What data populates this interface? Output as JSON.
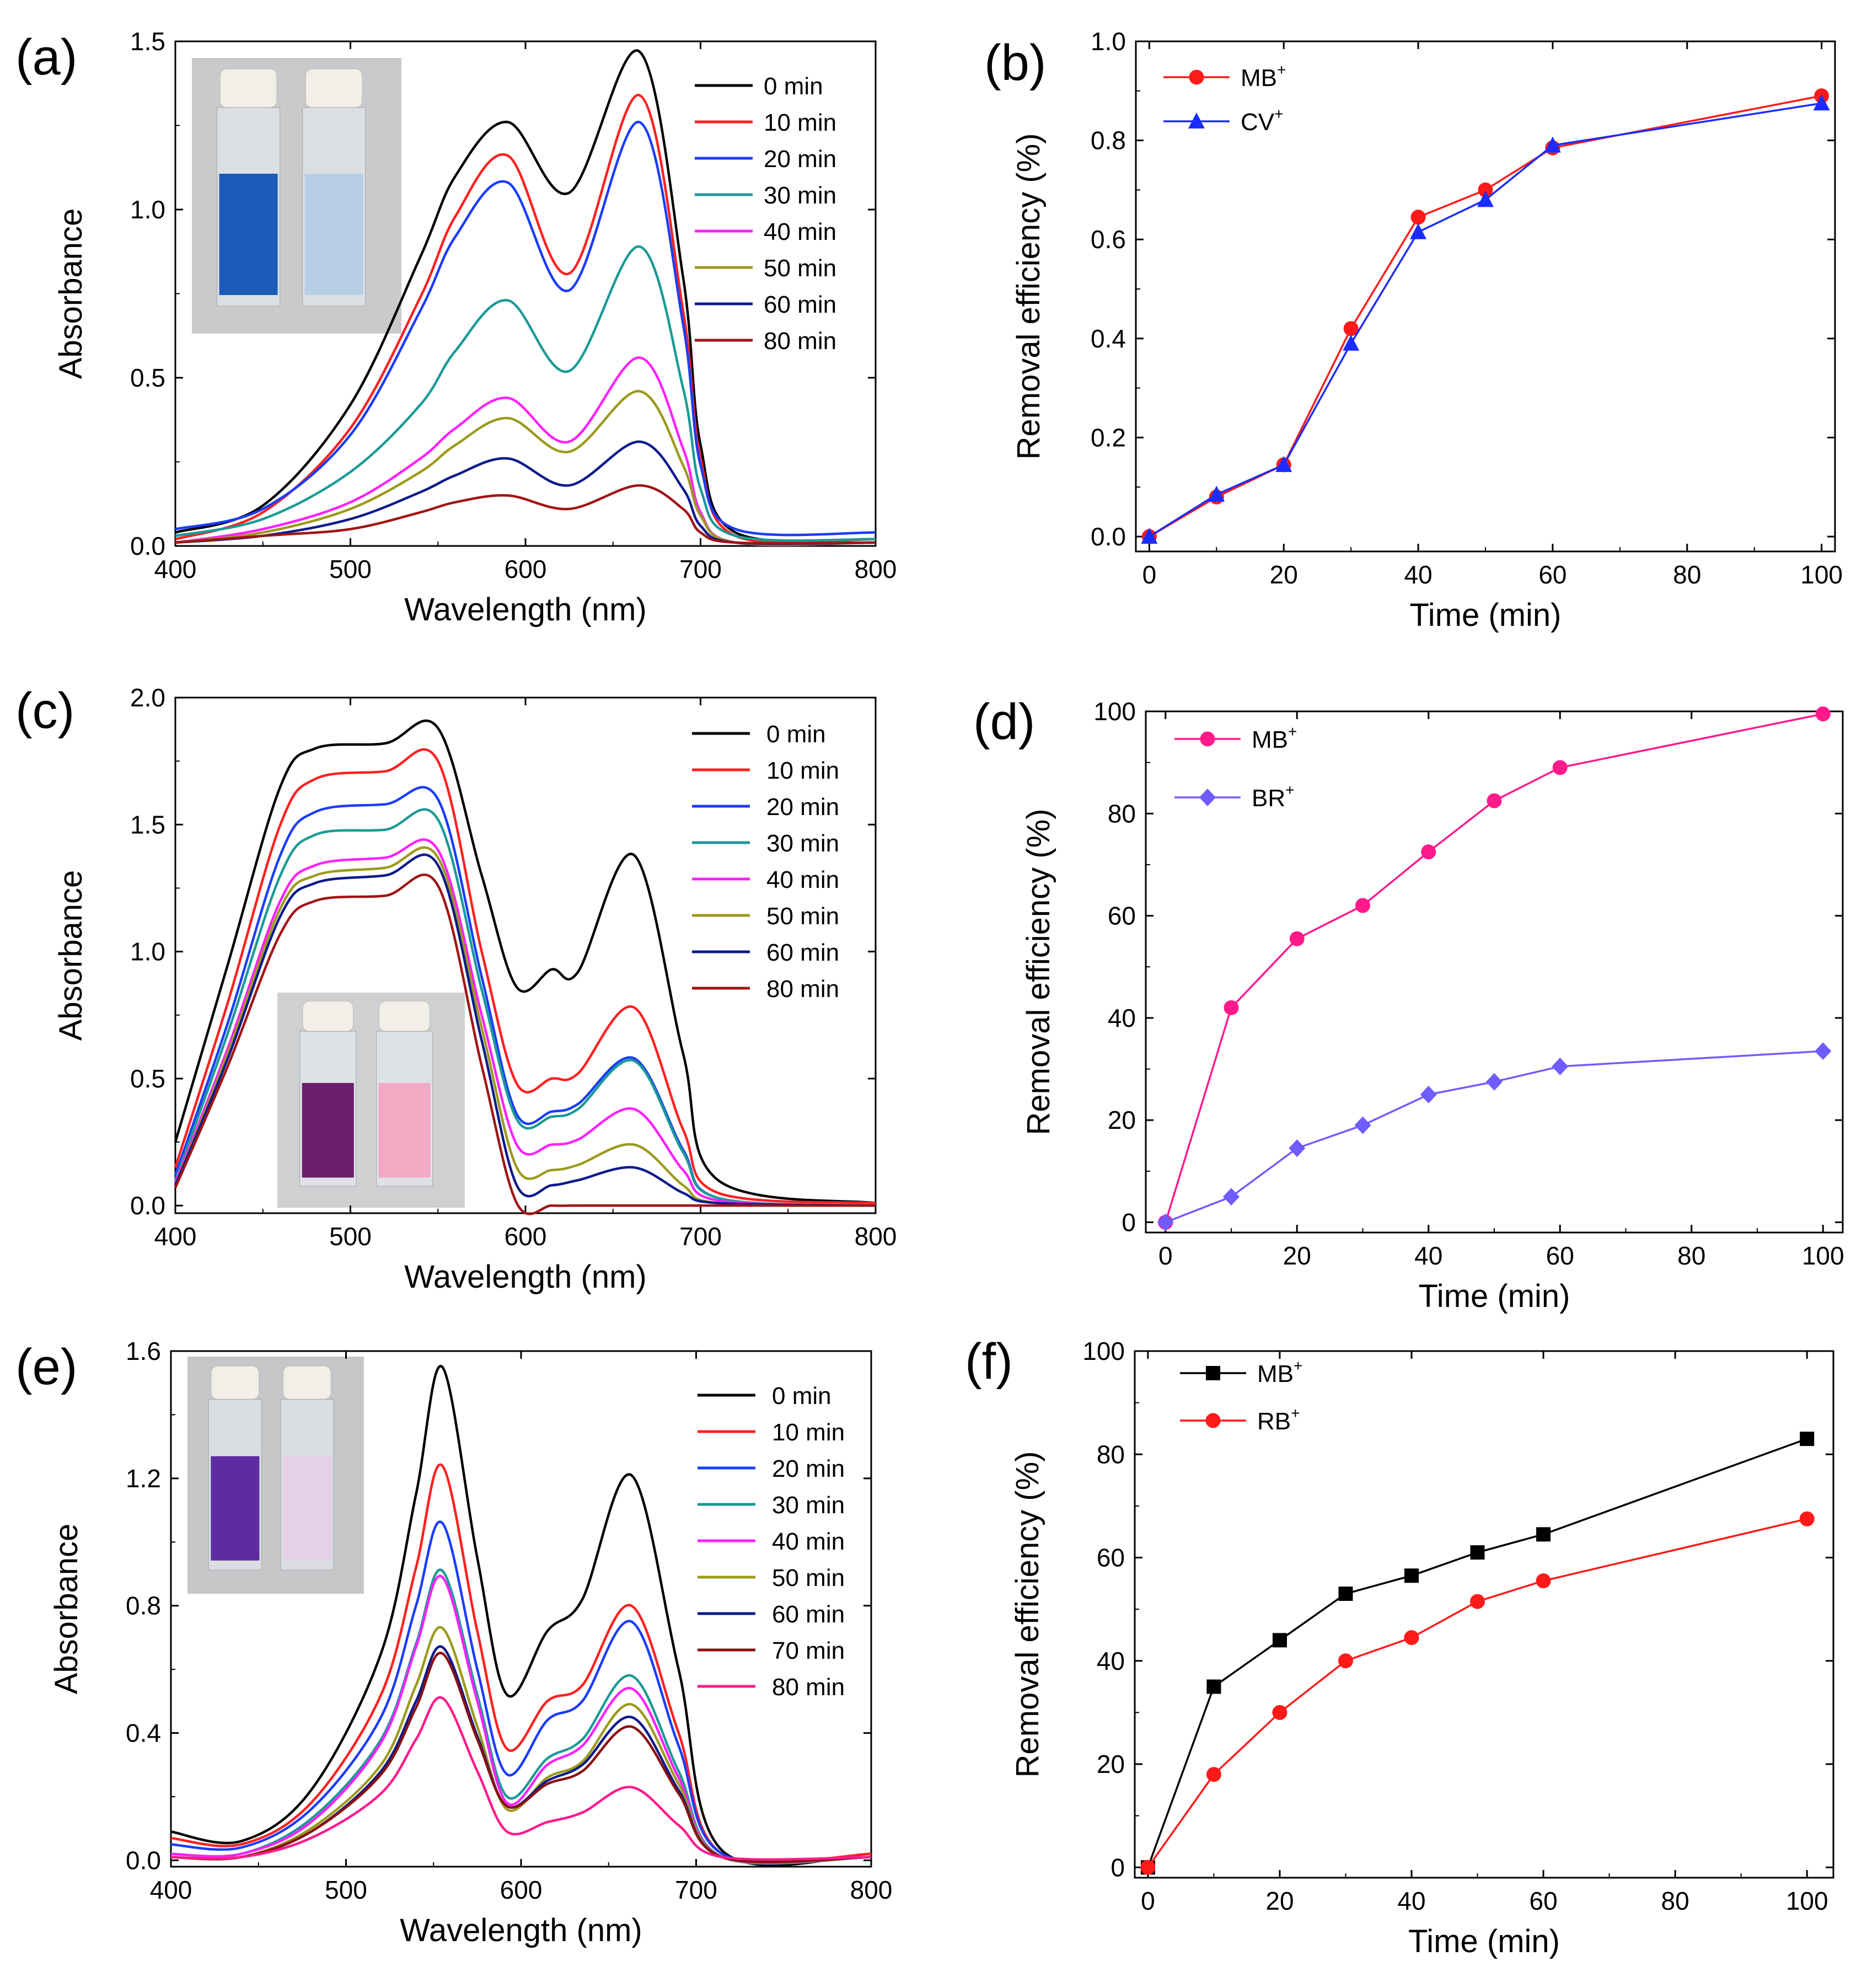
{
  "figure_title": "",
  "chart_data": [
    {
      "panel": "(a)",
      "type": "line",
      "xlabel": "Wavelength (nm)",
      "ylabel": "Absorbance",
      "xlim": [
        400,
        800
      ],
      "ylim": [
        0.0,
        1.5
      ],
      "xticks": [
        400,
        500,
        600,
        700,
        800
      ],
      "yticks": [
        0.0,
        0.5,
        1.0,
        1.5
      ],
      "xtick_labels": [
        "400",
        "500",
        "600",
        "700",
        "800"
      ],
      "ytick_labels": [
        "0.0",
        "0.5",
        "1.0",
        "1.5"
      ],
      "legend_position": "top-right",
      "inset_photo": {
        "position": "top-left",
        "colors": [
          "#1b5bb8",
          "#b7cfe6"
        ],
        "background": "#c9cacb"
      },
      "x": [
        400,
        450,
        500,
        540,
        560,
        590,
        625,
        665,
        690,
        700,
        720,
        800
      ],
      "series": [
        {
          "name": "0 min",
          "color": "#000000",
          "values": [
            0.04,
            0.12,
            0.42,
            0.86,
            1.1,
            1.26,
            1.05,
            1.47,
            0.8,
            0.3,
            0.04,
            0.02
          ]
        },
        {
          "name": "10 min",
          "color": "#ff2020",
          "values": [
            0.02,
            0.1,
            0.35,
            0.74,
            0.98,
            1.16,
            0.81,
            1.34,
            0.7,
            0.26,
            0.03,
            0.02
          ]
        },
        {
          "name": "20 min",
          "color": "#1a3cff",
          "values": [
            0.05,
            0.11,
            0.33,
            0.7,
            0.92,
            1.08,
            0.76,
            1.26,
            0.66,
            0.24,
            0.05,
            0.04
          ]
        },
        {
          "name": "30 min",
          "color": "#1a9a96",
          "values": [
            0.03,
            0.08,
            0.22,
            0.42,
            0.58,
            0.73,
            0.52,
            0.89,
            0.47,
            0.17,
            0.03,
            0.02
          ]
        },
        {
          "name": "40 min",
          "color": "#ff20ff",
          "values": [
            0.01,
            0.05,
            0.13,
            0.26,
            0.35,
            0.44,
            0.31,
            0.56,
            0.29,
            0.1,
            0.01,
            0.01
          ]
        },
        {
          "name": "50 min",
          "color": "#9c9a1c",
          "values": [
            0.01,
            0.04,
            0.11,
            0.22,
            0.3,
            0.38,
            0.28,
            0.46,
            0.24,
            0.09,
            0.01,
            0.01
          ]
        },
        {
          "name": "60 min",
          "color": "#0c1a8c",
          "values": [
            0.01,
            0.03,
            0.08,
            0.16,
            0.21,
            0.26,
            0.18,
            0.31,
            0.17,
            0.06,
            0.01,
            0.01
          ]
        },
        {
          "name": "80 min",
          "color": "#a01414",
          "values": [
            0.01,
            0.03,
            0.05,
            0.1,
            0.13,
            0.15,
            0.11,
            0.18,
            0.11,
            0.04,
            0.01,
            0.01
          ]
        }
      ]
    },
    {
      "panel": "(b)",
      "type": "line",
      "xlabel": "Time (min)",
      "ylabel": "Removal efficiency (%)",
      "xlim": [
        -2,
        102
      ],
      "ylim": [
        -0.03,
        1.0
      ],
      "xticks": [
        0,
        20,
        40,
        60,
        80,
        100
      ],
      "yticks": [
        0.0,
        0.2,
        0.4,
        0.6,
        0.8,
        1.0
      ],
      "xtick_labels": [
        "0",
        "20",
        "40",
        "60",
        "80",
        "100"
      ],
      "ytick_labels": [
        "0.0",
        "0.2",
        "0.4",
        "0.6",
        "0.8",
        "1.0"
      ],
      "legend_position": "top-left",
      "x": [
        0,
        10,
        20,
        30,
        40,
        50,
        60,
        100
      ],
      "series": [
        {
          "name": "MB",
          "sup": "+",
          "color": "#ff1a1a",
          "marker": "circle",
          "values": [
            0.0,
            0.08,
            0.145,
            0.42,
            0.645,
            0.7,
            0.785,
            0.89
          ]
        },
        {
          "name": "CV",
          "sup": "+",
          "color": "#1a2cff",
          "marker": "triangle",
          "values": [
            0.0,
            0.085,
            0.145,
            0.39,
            0.615,
            0.68,
            0.79,
            0.875
          ]
        }
      ]
    },
    {
      "panel": "(c)",
      "type": "line",
      "xlabel": "Wavelength (nm)",
      "ylabel": "Absorbance",
      "xlim": [
        400,
        800
      ],
      "ylim": [
        -0.03,
        2.0
      ],
      "xticks": [
        400,
        500,
        600,
        700,
        800
      ],
      "yticks": [
        0.0,
        0.5,
        1.0,
        1.5,
        2.0
      ],
      "xtick_labels": [
        "400",
        "500",
        "600",
        "700",
        "800"
      ],
      "ytick_labels": [
        "0.0",
        "0.5",
        "1.0",
        "1.5",
        "2.0"
      ],
      "legend_position": "top-right",
      "inset_photo": {
        "position": "bottom-center",
        "colors": [
          "#6a1e6e",
          "#f2a9c4"
        ],
        "background": "#cfd0d2"
      },
      "x": [
        400,
        430,
        460,
        480,
        520,
        550,
        575,
        595,
        615,
        630,
        662,
        690,
        710,
        800
      ],
      "series": [
        {
          "name": "0  min",
          "color": "#000000",
          "values": [
            0.25,
            0.95,
            1.65,
            1.8,
            1.82,
            1.88,
            1.3,
            0.86,
            0.93,
            0.92,
            1.38,
            0.6,
            0.1,
            0.01
          ]
        },
        {
          "name": "10 min",
          "color": "#ff2020",
          "values": [
            0.15,
            0.8,
            1.5,
            1.68,
            1.71,
            1.75,
            1.0,
            0.48,
            0.5,
            0.52,
            0.78,
            0.3,
            0.05,
            0.01
          ]
        },
        {
          "name": "20 min",
          "color": "#1a3cff",
          "values": [
            0.12,
            0.72,
            1.38,
            1.55,
            1.58,
            1.6,
            0.9,
            0.36,
            0.37,
            0.4,
            0.58,
            0.22,
            0.03,
            0.0
          ]
        },
        {
          "name": "30 min",
          "color": "#1a9a96",
          "values": [
            0.1,
            0.68,
            1.3,
            1.46,
            1.48,
            1.52,
            0.85,
            0.34,
            0.35,
            0.38,
            0.57,
            0.21,
            0.03,
            0.0
          ]
        },
        {
          "name": "40 min",
          "color": "#ff20ff",
          "values": [
            0.09,
            0.62,
            1.2,
            1.34,
            1.37,
            1.4,
            0.75,
            0.24,
            0.24,
            0.26,
            0.38,
            0.14,
            0.02,
            0.0
          ]
        },
        {
          "name": "50 min",
          "color": "#9c9a1c",
          "values": [
            0.08,
            0.6,
            1.17,
            1.3,
            1.33,
            1.37,
            0.7,
            0.15,
            0.14,
            0.16,
            0.24,
            0.08,
            0.01,
            0.0
          ]
        },
        {
          "name": "60 min",
          "color": "#0c1a8c",
          "values": [
            0.08,
            0.58,
            1.14,
            1.27,
            1.3,
            1.34,
            0.65,
            0.08,
            0.08,
            0.1,
            0.15,
            0.05,
            0.01,
            0.0
          ]
        },
        {
          "name": "80 min",
          "color": "#a01414",
          "values": [
            0.07,
            0.55,
            1.07,
            1.2,
            1.22,
            1.26,
            0.55,
            0.01,
            0.0,
            0.0,
            0.0,
            0.0,
            0.0,
            0.0
          ]
        }
      ]
    },
    {
      "panel": "(d)",
      "type": "line",
      "xlabel": "Time (min)",
      "ylabel": "Removal efficiency (%)",
      "xlim": [
        -3,
        103
      ],
      "ylim": [
        -2,
        100
      ],
      "xticks": [
        0,
        20,
        40,
        60,
        80,
        100
      ],
      "yticks": [
        0,
        20,
        40,
        60,
        80,
        100
      ],
      "xtick_labels": [
        "0",
        "20",
        "40",
        "60",
        "80",
        "100"
      ],
      "ytick_labels": [
        "0",
        "20",
        "40",
        "60",
        "80",
        "100"
      ],
      "legend_position": "top-left",
      "x": [
        0,
        10,
        20,
        30,
        40,
        50,
        60,
        100
      ],
      "series": [
        {
          "name": "MB",
          "sup": "+",
          "color": "#ff1a8c",
          "marker": "circle",
          "values": [
            0,
            42,
            55.5,
            62,
            72.5,
            82.5,
            89,
            99.5
          ]
        },
        {
          "name": "BR",
          "sup": "+",
          "color": "#6f5cff",
          "marker": "diamond",
          "values": [
            0,
            5,
            14.5,
            19,
            25,
            27.5,
            30.5,
            33.5
          ]
        }
      ]
    },
    {
      "panel": "(e)",
      "type": "line",
      "xlabel": "Wavelength (nm)",
      "ylabel": "Absorbance",
      "xlim": [
        400,
        800
      ],
      "ylim": [
        -0.02,
        1.6
      ],
      "xticks": [
        400,
        500,
        600,
        700,
        800
      ],
      "yticks": [
        0.0,
        0.4,
        0.8,
        1.2,
        1.6
      ],
      "xtick_labels": [
        "400",
        "500",
        "600",
        "700",
        "800"
      ],
      "ytick_labels": [
        "0.0",
        "0.4",
        "0.8",
        "1.2",
        "1.6"
      ],
      "legend_position": "top-right",
      "inset_photo": {
        "position": "top-left",
        "colors": [
          "#5c2ca0",
          "#e6d0e8"
        ],
        "background": "#c6c7c9"
      },
      "x": [
        400,
        440,
        480,
        520,
        540,
        555,
        575,
        592,
        615,
        635,
        663,
        690,
        715,
        800
      ],
      "series": [
        {
          "name": "0 min",
          "color": "#000000",
          "values": [
            0.09,
            0.06,
            0.22,
            0.65,
            1.15,
            1.55,
            0.95,
            0.52,
            0.72,
            0.82,
            1.21,
            0.6,
            0.03,
            0.02
          ]
        },
        {
          "name": "10 min",
          "color": "#ff2020",
          "values": [
            0.07,
            0.05,
            0.18,
            0.52,
            0.92,
            1.24,
            0.72,
            0.35,
            0.5,
            0.55,
            0.8,
            0.4,
            0.02,
            0.02
          ]
        },
        {
          "name": "20 min",
          "color": "#1a3cff",
          "values": [
            0.05,
            0.04,
            0.16,
            0.45,
            0.8,
            1.06,
            0.6,
            0.27,
            0.44,
            0.5,
            0.75,
            0.36,
            0.02,
            0.01
          ]
        },
        {
          "name": "30 min",
          "color": "#1a9a96",
          "values": [
            0.02,
            0.02,
            0.13,
            0.38,
            0.68,
            0.91,
            0.52,
            0.2,
            0.32,
            0.38,
            0.58,
            0.28,
            0.01,
            0.01
          ]
        },
        {
          "name": "40 min",
          "color": "#ff20ff",
          "values": [
            0.02,
            0.02,
            0.12,
            0.37,
            0.67,
            0.89,
            0.5,
            0.18,
            0.3,
            0.36,
            0.54,
            0.26,
            0.01,
            0.01
          ]
        },
        {
          "name": "50 min",
          "color": "#9c9a1c",
          "values": [
            0.01,
            0.01,
            0.1,
            0.3,
            0.55,
            0.73,
            0.42,
            0.16,
            0.26,
            0.31,
            0.49,
            0.24,
            0.01,
            0.01
          ]
        },
        {
          "name": "60 min",
          "color": "#0c1a8c",
          "values": [
            0.01,
            0.01,
            0.09,
            0.28,
            0.5,
            0.67,
            0.39,
            0.17,
            0.25,
            0.3,
            0.45,
            0.22,
            0.01,
            0.01
          ]
        },
        {
          "name": "70 min",
          "color": "#8a1010",
          "values": [
            0.01,
            0.01,
            0.09,
            0.27,
            0.48,
            0.65,
            0.38,
            0.17,
            0.24,
            0.28,
            0.42,
            0.21,
            0.01,
            0.01
          ]
        },
        {
          "name": "80 min",
          "color": "#ff1a8c",
          "values": [
            0.01,
            0.01,
            0.07,
            0.21,
            0.38,
            0.51,
            0.28,
            0.09,
            0.12,
            0.15,
            0.23,
            0.11,
            0.01,
            0.01
          ]
        }
      ]
    },
    {
      "panel": "(f)",
      "type": "line",
      "xlabel": "Time (min)",
      "ylabel": "Removal efficiency (%)",
      "xlim": [
        -2,
        104
      ],
      "ylim": [
        -2,
        100
      ],
      "xticks": [
        0,
        20,
        40,
        60,
        80,
        100
      ],
      "yticks": [
        0,
        20,
        40,
        60,
        80,
        100
      ],
      "xtick_labels": [
        "0",
        "20",
        "40",
        "60",
        "80",
        "100"
      ],
      "ytick_labels": [
        "0",
        "20",
        "40",
        "60",
        "80",
        "100"
      ],
      "legend_position": "top-left",
      "x": [
        0,
        10,
        20,
        30,
        40,
        50,
        60,
        100
      ],
      "series": [
        {
          "name": "MB",
          "sup": "+",
          "color": "#000000",
          "marker": "square",
          "values": [
            0,
            35,
            44,
            53,
            56.5,
            61,
            64.5,
            83
          ]
        },
        {
          "name": "RB",
          "sup": "+",
          "color": "#ff1a1a",
          "marker": "circle",
          "values": [
            0,
            18,
            30,
            40,
            44.5,
            51.5,
            55.5,
            67.5
          ]
        }
      ]
    }
  ]
}
